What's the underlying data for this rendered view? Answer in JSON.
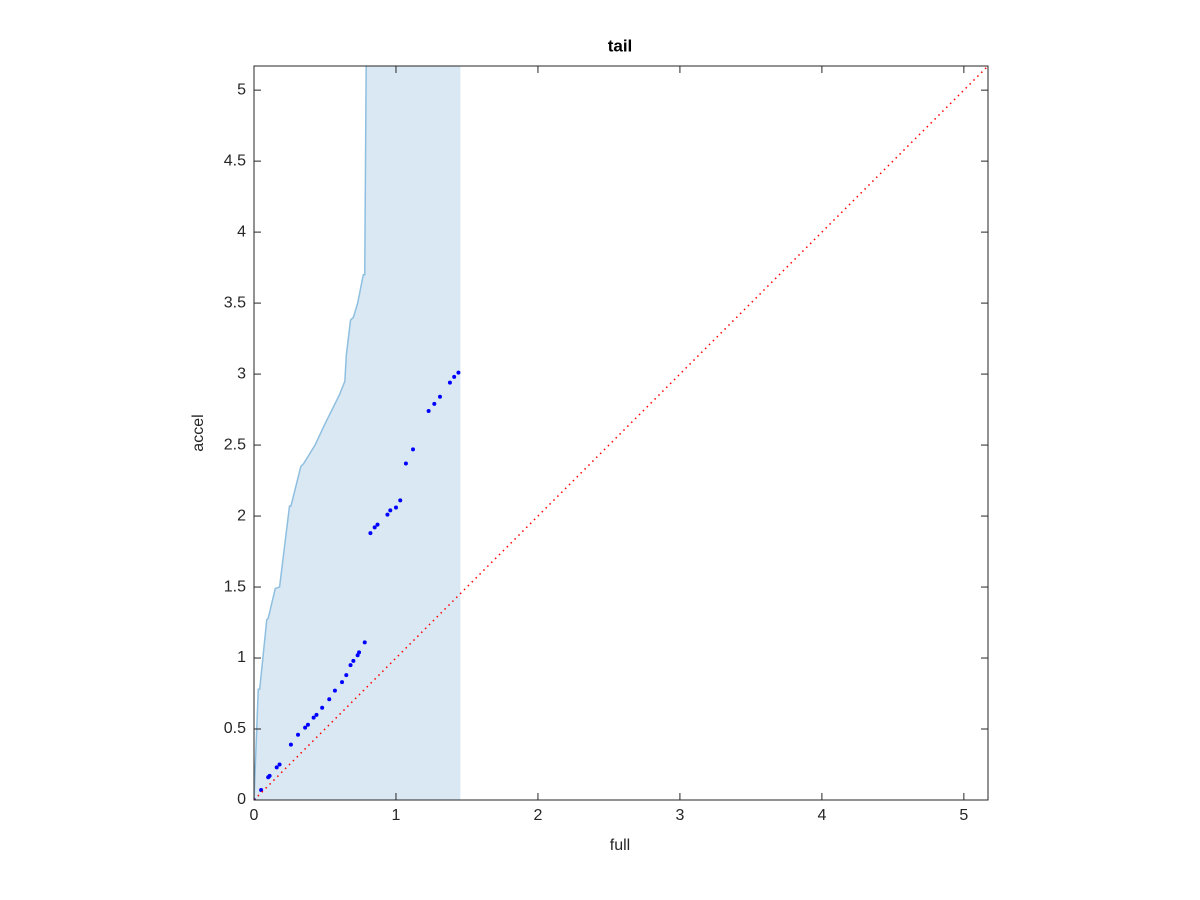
{
  "chart_data": {
    "type": "scatter",
    "title": "tail",
    "xlabel": "full",
    "ylabel": "accel",
    "xlim": [
      0,
      5.17
    ],
    "ylim": [
      0,
      5.17
    ],
    "xticks": [
      0,
      1,
      2,
      3,
      4,
      5
    ],
    "yticks": [
      0,
      0.5,
      1,
      1.5,
      2,
      2.5,
      3,
      3.5,
      4,
      4.5,
      5
    ],
    "series": [
      {
        "type": "area",
        "color": "#d9e8f3",
        "edge_color": "#8ebfe0",
        "x_end": 1.45,
        "x": [
          0,
          0.03,
          0.04,
          0.09,
          0.1,
          0.15,
          0.18,
          0.25,
          0.26,
          0.33,
          0.35,
          0.43,
          0.5,
          0.6,
          0.64,
          0.65,
          0.68,
          0.7,
          0.73,
          0.77,
          0.78,
          0.79
        ],
        "y": [
          0,
          0.78,
          0.78,
          1.27,
          1.28,
          1.49,
          1.5,
          2.07,
          2.07,
          2.35,
          2.37,
          2.5,
          2.65,
          2.85,
          2.95,
          3.13,
          3.38,
          3.4,
          3.5,
          3.7,
          3.7,
          5.17
        ]
      },
      {
        "type": "scatter",
        "color": "#0000ff",
        "x": [
          0,
          0.05,
          0.1,
          0.11,
          0.16,
          0.18,
          0.26,
          0.31,
          0.36,
          0.38,
          0.42,
          0.44,
          0.48,
          0.53,
          0.57,
          0.62,
          0.65,
          0.68,
          0.7,
          0.73,
          0.74,
          0.78,
          0.82,
          0.85,
          0.87,
          0.94,
          0.96,
          1.0,
          1.03,
          1.07,
          1.12,
          1.23,
          1.27,
          1.31,
          1.38,
          1.41,
          1.44
        ],
        "y": [
          0,
          0.07,
          0.16,
          0.17,
          0.23,
          0.25,
          0.39,
          0.46,
          0.51,
          0.53,
          0.58,
          0.6,
          0.65,
          0.71,
          0.77,
          0.83,
          0.88,
          0.95,
          0.98,
          1.02,
          1.04,
          1.11,
          1.88,
          1.92,
          1.94,
          2.01,
          2.04,
          2.06,
          2.11,
          2.37,
          2.47,
          2.74,
          2.79,
          2.84,
          2.94,
          2.98,
          3.01
        ]
      },
      {
        "type": "line",
        "color": "#ff0000",
        "x": [
          0,
          5.17
        ],
        "y": [
          0,
          5.17
        ]
      }
    ]
  }
}
